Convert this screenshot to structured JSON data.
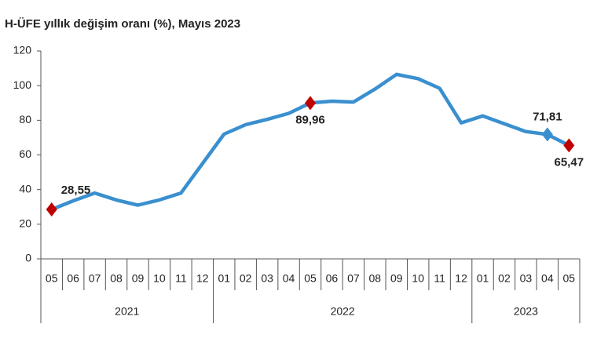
{
  "chart_data": {
    "type": "line",
    "title": "H-ÜFE yıllık değişim oranı (%), Mayıs 2023",
    "categories": [
      "05",
      "06",
      "07",
      "08",
      "09",
      "10",
      "11",
      "12",
      "01",
      "02",
      "03",
      "04",
      "05",
      "06",
      "07",
      "08",
      "09",
      "10",
      "11",
      "12",
      "01",
      "02",
      "03",
      "04",
      "05"
    ],
    "groups": [
      {
        "label": "2021",
        "count": 8
      },
      {
        "label": "2022",
        "count": 12
      },
      {
        "label": "2023",
        "count": 5
      }
    ],
    "series": [
      {
        "color": "#3a8fcf",
        "values": [
          28.55,
          33.5,
          38,
          34,
          31,
          34,
          38,
          55,
          72,
          77.5,
          80.5,
          84,
          89.96,
          91,
          90.5,
          98,
          106.5,
          104,
          98.5,
          78.5,
          82.5,
          78,
          73.5,
          71.81,
          65.47
        ],
        "value_labels": [
          "28,55",
          null,
          null,
          null,
          null,
          null,
          null,
          null,
          null,
          null,
          null,
          null,
          "89,96",
          null,
          null,
          null,
          null,
          null,
          null,
          null,
          null,
          null,
          null,
          "71,81",
          "65,47"
        ],
        "marker_colors": [
          "#c00000",
          null,
          null,
          null,
          null,
          null,
          null,
          null,
          null,
          null,
          null,
          null,
          "#c00000",
          null,
          null,
          null,
          null,
          null,
          null,
          null,
          null,
          null,
          null,
          "#3a8fcf",
          "#c00000"
        ]
      }
    ],
    "ylim": [
      0,
      120
    ],
    "yticks": [
      0,
      20,
      40,
      60,
      80,
      100,
      120
    ],
    "grid": false
  }
}
